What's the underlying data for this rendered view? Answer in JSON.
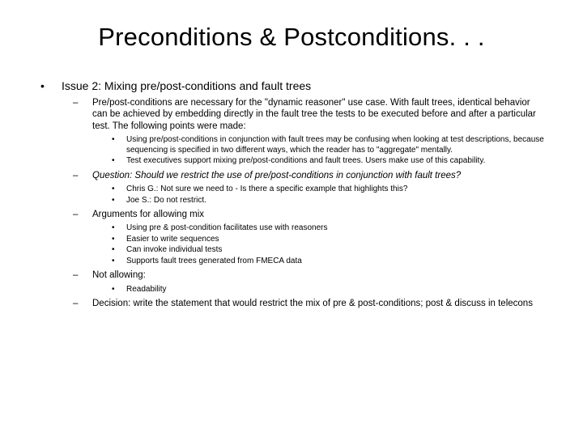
{
  "title": "Preconditions & Postconditions. . .",
  "issue": "Issue 2: Mixing pre/post-conditions and fault trees",
  "p1": "Pre/post-conditions are necessary for the \"dynamic reasoner\" use case. With fault trees, identical behavior can be achieved by embedding directly in the fault tree the tests to be executed before and after a particular test. The following points were made:",
  "p1a": "Using pre/post-conditions in conjunction with fault trees may be confusing when looking at test descriptions, because sequencing is specified in two different ways, which the reader has to \"aggregate\" mentally.",
  "p1b": "Test executives support mixing pre/post-conditions and fault trees. Users make use of this capability.",
  "p2": "Question: Should we restrict the use of pre/post-conditions in conjunction with fault trees?",
  "p2a": "Chris G.: Not sure we need to - Is there a specific example that highlights this?",
  "p2b": "Joe S.: Do not restrict.",
  "p3": "Arguments for allowing mix",
  "p3a": "Using pre & post-condition facilitates use with reasoners",
  "p3b": "Easier to write sequences",
  "p3c": "Can invoke individual tests",
  "p3d": "Supports fault trees generated from FMECA data",
  "p4": "Not allowing:",
  "p4a": "Readability",
  "p5": "Decision: write the statement that would restrict the mix of pre & post-conditions; post & discuss in telecons"
}
